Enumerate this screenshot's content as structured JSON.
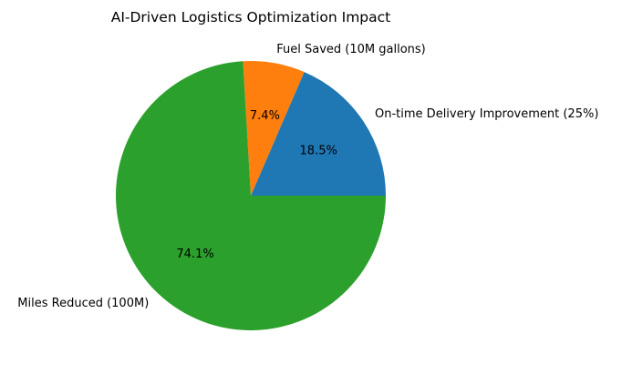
{
  "chart_data": {
    "type": "pie",
    "title": "AI-Driven Logistics Optimization Impact",
    "slices": [
      {
        "label": "On-time Delivery Improvement (25%)",
        "value": 25,
        "percent_label": "18.5%",
        "color": "#1f77b4"
      },
      {
        "label": "Fuel Saved (10M gallons)",
        "value": 10,
        "percent_label": "7.4%",
        "color": "#ff7f0e"
      },
      {
        "label": "Miles Reduced (100M)",
        "value": 100,
        "percent_label": "74.1%",
        "color": "#2ca02c"
      }
    ],
    "start_angle_deg": 0,
    "direction": "counterclockwise",
    "legend": "none"
  }
}
